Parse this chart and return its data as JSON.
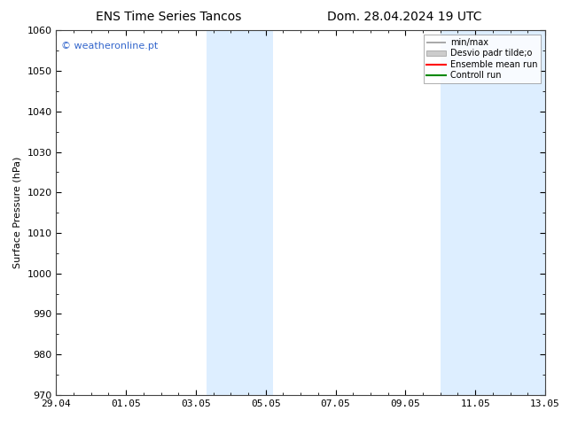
{
  "title_left": "ENS Time Series Tancos",
  "title_right": "Dom. 28.04.2024 19 UTC",
  "ylabel": "Surface Pressure (hPa)",
  "ylim": [
    970,
    1060
  ],
  "yticks": [
    970,
    980,
    990,
    1000,
    1010,
    1020,
    1030,
    1040,
    1050,
    1060
  ],
  "xtick_labels": [
    "29.04",
    "01.05",
    "03.05",
    "05.05",
    "07.05",
    "09.05",
    "11.05",
    "13.05"
  ],
  "xtick_positions": [
    0,
    2,
    4,
    6,
    8,
    10,
    12,
    14
  ],
  "xlim": [
    0,
    14
  ],
  "shade_regions": [
    {
      "xstart": 4.3,
      "xend": 6.2
    },
    {
      "xstart": 11.0,
      "xend": 14.0
    }
  ],
  "shade_color": "#ddeeff",
  "watermark_text": "© weatheronline.pt",
  "watermark_color": "#3366cc",
  "watermark_fontsize": 8,
  "background_color": "#ffffff",
  "title_fontsize": 10,
  "axis_label_fontsize": 8,
  "tick_fontsize": 8,
  "legend_labels": [
    "min/max",
    "Desvio padr tilde;o",
    "Ensemble mean run",
    "Controll run"
  ],
  "legend_colors": [
    "#999999",
    "#cccccc",
    "#ff0000",
    "#008800"
  ],
  "spine_color": "#444444"
}
